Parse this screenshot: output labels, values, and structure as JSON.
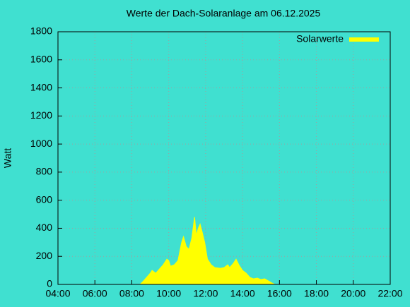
{
  "chart_data": {
    "type": "area",
    "title": "Werte der Dach-Solaranlage am 06.12.2025",
    "y_label": "Watt",
    "x": [
      8.45,
      8.6,
      8.8,
      9.0,
      9.1,
      9.3,
      9.5,
      9.7,
      9.9,
      10.0,
      10.1,
      10.3,
      10.5,
      10.7,
      10.8,
      10.95,
      11.1,
      11.25,
      11.4,
      11.5,
      11.6,
      11.7,
      11.8,
      11.95,
      12.1,
      12.3,
      12.5,
      12.8,
      13.0,
      13.2,
      13.3,
      13.5,
      13.65,
      13.8,
      14.0,
      14.2,
      14.4,
      14.6,
      14.8,
      15.0,
      15.2,
      15.4,
      15.6,
      15.75
    ],
    "series": [
      {
        "name": "Solarwerte",
        "color": "#ffff00",
        "values": [
          0,
          20,
          50,
          80,
          100,
          80,
          110,
          140,
          180,
          170,
          130,
          140,
          170,
          300,
          340,
          270,
          250,
          330,
          480,
          350,
          400,
          430,
          380,
          300,
          180,
          140,
          120,
          115,
          120,
          140,
          120,
          150,
          180,
          140,
          100,
          80,
          50,
          40,
          45,
          35,
          40,
          25,
          10,
          0
        ]
      }
    ],
    "xlim": [
      4,
      22
    ],
    "xticks": [
      {
        "value": 4,
        "label": "04:00"
      },
      {
        "value": 6,
        "label": "06:00"
      },
      {
        "value": 8,
        "label": "08:00"
      },
      {
        "value": 10,
        "label": "10:00"
      },
      {
        "value": 12,
        "label": "12:00"
      },
      {
        "value": 14,
        "label": "14:00"
      },
      {
        "value": 16,
        "label": "16:00"
      },
      {
        "value": 18,
        "label": "18:00"
      },
      {
        "value": 20,
        "label": "20:00"
      },
      {
        "value": 22,
        "label": "22:00"
      }
    ],
    "ylim": [
      0,
      1800
    ],
    "yticks": [
      0,
      200,
      400,
      600,
      800,
      1000,
      1200,
      1400,
      1600,
      1800
    ],
    "grid": true,
    "legend": "top-right"
  }
}
